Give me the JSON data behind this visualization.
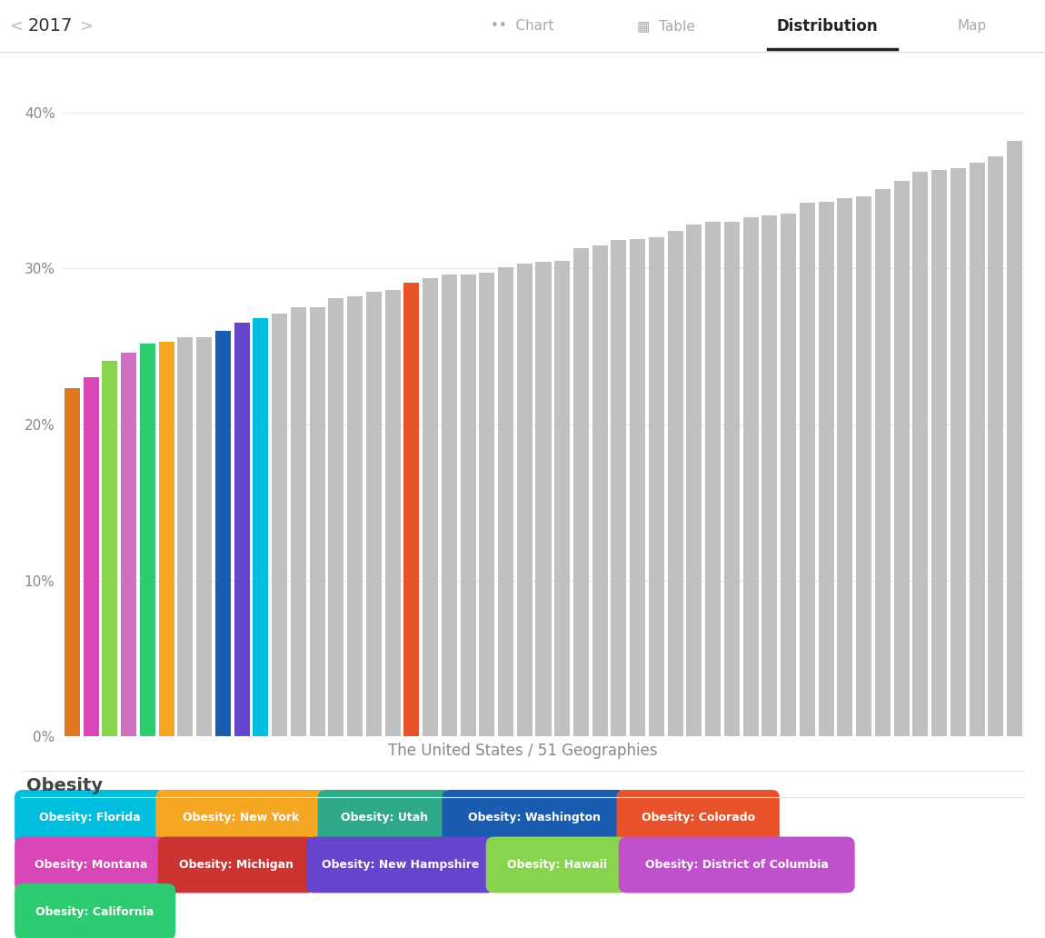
{
  "title": "The United States / 51 Geographies",
  "ylabel_ticks": [
    "0%",
    "10%",
    "20%",
    "30%",
    "40%"
  ],
  "ytick_values": [
    0,
    10,
    20,
    30,
    40
  ],
  "header_year": "2017",
  "obesity_label": "Obesity",
  "bar_values": [
    22.3,
    23.0,
    24.1,
    24.6,
    25.2,
    25.3,
    25.6,
    25.6,
    26.0,
    26.5,
    26.8,
    27.1,
    27.5,
    27.5,
    28.1,
    28.2,
    28.5,
    28.6,
    29.1,
    29.4,
    29.6,
    29.6,
    29.7,
    30.1,
    30.3,
    30.4,
    30.5,
    31.3,
    31.5,
    31.8,
    31.9,
    32.0,
    32.4,
    32.8,
    33.0,
    33.0,
    33.3,
    33.4,
    33.5,
    34.2,
    34.3,
    34.5,
    34.6,
    35.1,
    35.6,
    36.2,
    36.3,
    36.4,
    36.8,
    37.2,
    38.2
  ],
  "bar_colors_list": [
    "#E07820",
    "#D946B8",
    "#88D44F",
    "#D070C0",
    "#2ECC71",
    "#F5A623",
    "#C0C0C0",
    "#C0C0C0",
    "#1A5CB0",
    "#6644CC",
    "#00BFDE",
    "#C0C0C0",
    "#C0C0C0",
    "#C0C0C0",
    "#C0C0C0",
    "#C0C0C0",
    "#C0C0C0",
    "#C0C0C0",
    "#E8522A",
    "#C0C0C0",
    "#C0C0C0",
    "#C0C0C0",
    "#C0C0C0",
    "#C0C0C0",
    "#C0C0C0",
    "#C0C0C0",
    "#C0C0C0",
    "#C0C0C0",
    "#C0C0C0",
    "#C0C0C0",
    "#C0C0C0",
    "#C0C0C0",
    "#C0C0C0",
    "#C0C0C0",
    "#C0C0C0",
    "#C0C0C0",
    "#C0C0C0",
    "#C0C0C0",
    "#C0C0C0",
    "#C0C0C0",
    "#C0C0C0",
    "#C0C0C0",
    "#C0C0C0",
    "#C0C0C0",
    "#C0C0C0",
    "#C0C0C0",
    "#C0C0C0",
    "#C0C0C0",
    "#C0C0C0",
    "#C0C0C0",
    "#C0C0C0"
  ],
  "legend_items": [
    {
      "label": "Obesity: Florida",
      "color": "#00BFDE"
    },
    {
      "label": "Obesity: New York",
      "color": "#F5A623"
    },
    {
      "label": "Obesity: Utah",
      "color": "#2EAA8A"
    },
    {
      "label": "Obesity: Washington",
      "color": "#1A5CB0"
    },
    {
      "label": "Obesity: Colorado",
      "color": "#E8522A"
    },
    {
      "label": "Obesity: Montana",
      "color": "#D946B8"
    },
    {
      "label": "Obesity: Michigan",
      "color": "#CC3333"
    },
    {
      "label": "Obesity: New Hampshire",
      "color": "#6644CC"
    },
    {
      "label": "Obesity: Hawaii",
      "color": "#88D44F"
    },
    {
      "label": "Obesity: District of Columbia",
      "color": "#C050CC"
    },
    {
      "label": "Obesity: California",
      "color": "#2ECC71"
    }
  ],
  "background_color": "#FFFFFF",
  "grid_color": "#E8E8E8",
  "axis_label_color": "#888888",
  "bar_gray": "#C0C0C0",
  "xlim": [
    -0.5,
    50.5
  ],
  "ylim": [
    0,
    43
  ]
}
